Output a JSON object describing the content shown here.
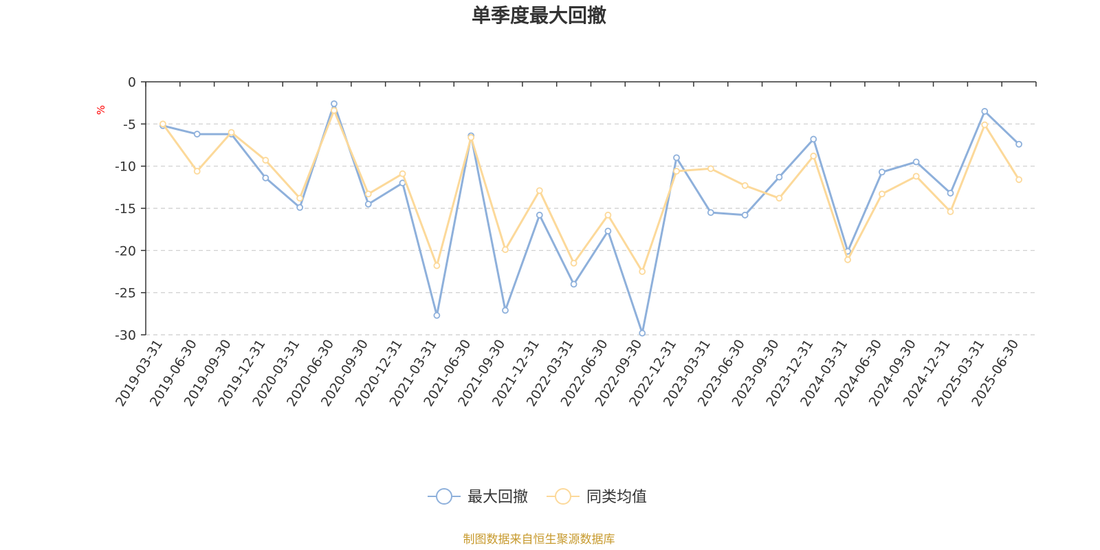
{
  "chart_data": {
    "type": "line",
    "title": "单季度最大回撤",
    "ylabel": "%",
    "ylim": [
      -30,
      0
    ],
    "yticks": [
      0,
      -5,
      -10,
      -15,
      -20,
      -25,
      -30
    ],
    "grid": true,
    "legend_position": "bottom",
    "categories": [
      "2019-03-31",
      "2019-06-30",
      "2019-09-30",
      "2019-12-31",
      "2020-03-31",
      "2020-06-30",
      "2020-09-30",
      "2020-12-31",
      "2021-03-31",
      "2021-06-30",
      "2021-09-30",
      "2021-12-31",
      "2022-03-31",
      "2022-06-30",
      "2022-09-30",
      "2022-12-31",
      "2023-03-31",
      "2023-06-30",
      "2023-09-30",
      "2023-12-31",
      "2024-03-31",
      "2024-06-30",
      "2024-09-30",
      "2024-12-31",
      "2025-03-31",
      "2025-06-30"
    ],
    "series": [
      {
        "name": "最大回撤",
        "color": "#8eb0db",
        "values": [
          -5.2,
          -6.2,
          -6.2,
          -11.4,
          -14.9,
          -2.6,
          -14.5,
          -12.0,
          -27.7,
          -6.4,
          -27.1,
          -15.8,
          -24.0,
          -17.7,
          -29.8,
          -9.0,
          -15.5,
          -15.8,
          -11.3,
          -6.8,
          -20.1,
          -10.7,
          -9.5,
          -13.2,
          -3.5,
          -7.4
        ]
      },
      {
        "name": "同类均值",
        "color": "#fcd99a",
        "values": [
          -5.0,
          -10.6,
          -6.0,
          -9.3,
          -13.8,
          -3.4,
          -13.3,
          -10.9,
          -21.8,
          -6.6,
          -19.9,
          -12.9,
          -21.5,
          -15.8,
          -22.5,
          -10.6,
          -10.3,
          -12.3,
          -13.8,
          -8.8,
          -21.1,
          -13.3,
          -11.2,
          -15.4,
          -5.1,
          -11.6
        ]
      }
    ],
    "source": "制图数据来自恒生聚源数据库",
    "colors": {
      "axis": "#333333",
      "grid": "#cccccc",
      "unit": "#ff0000",
      "title": "#333333",
      "source": "#c79a2e"
    }
  }
}
